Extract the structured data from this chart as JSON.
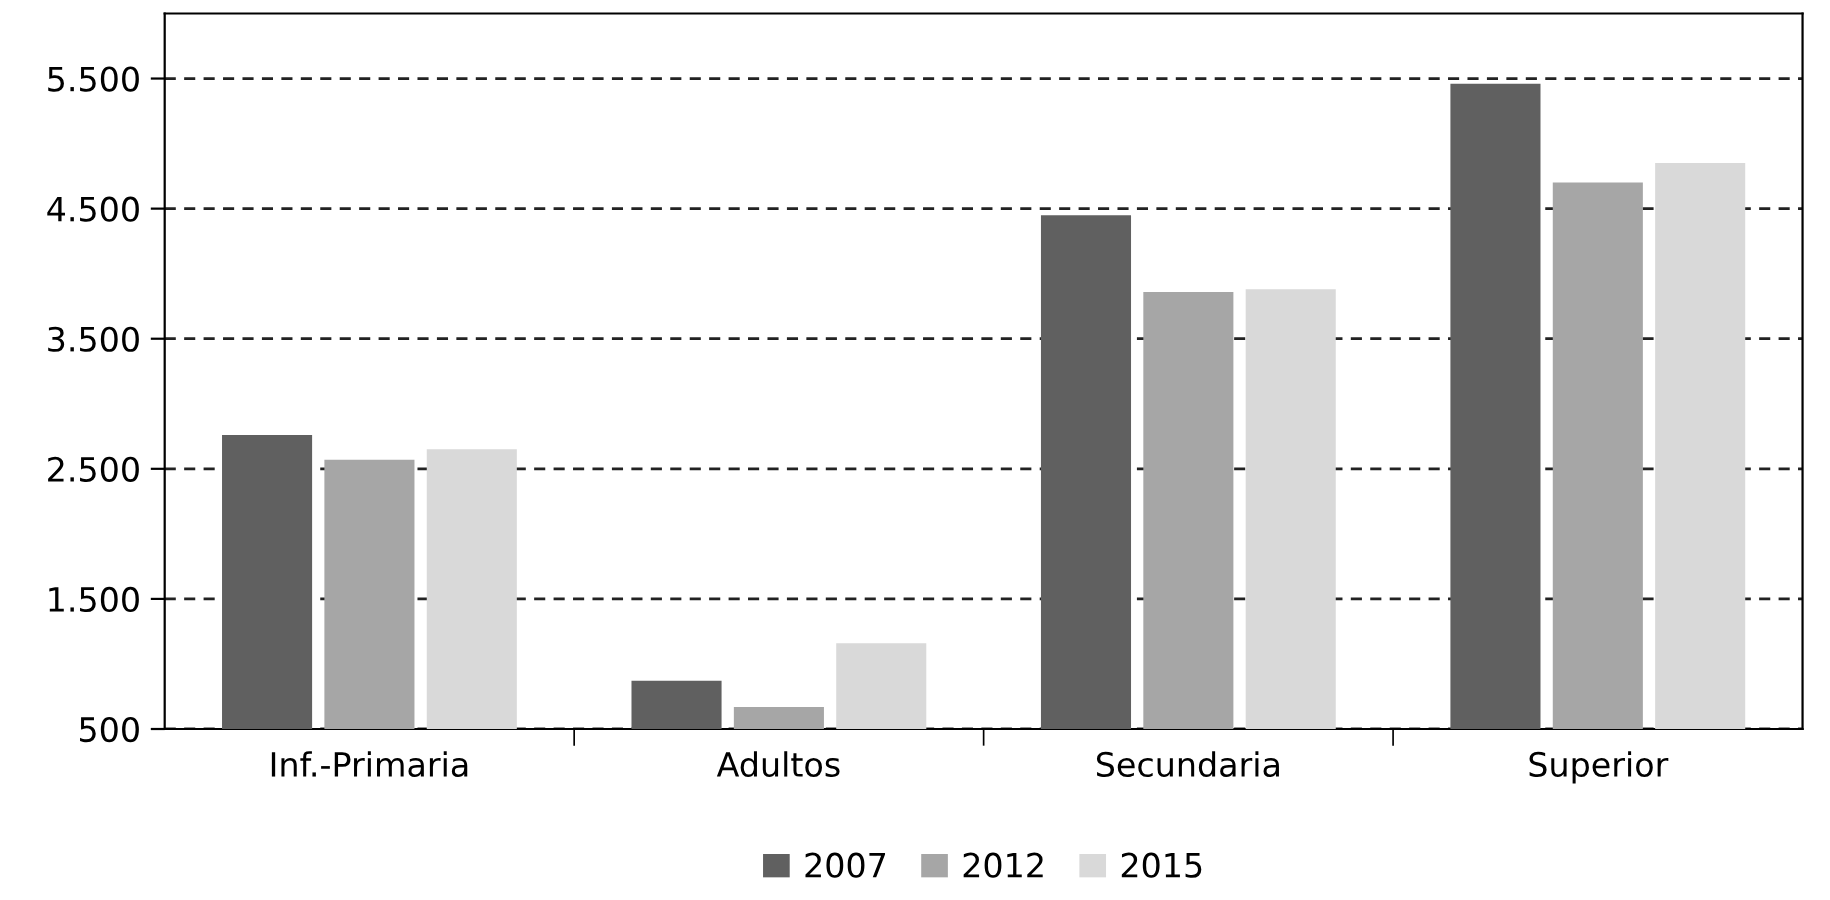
{
  "chart_data": {
    "type": "bar",
    "categories": [
      "Inf.-Primaria",
      "Adultos",
      "Secundaria",
      "Superior"
    ],
    "series": [
      {
        "name": "2007",
        "color": "#606060",
        "values": [
          2760,
          870,
          4450,
          5460
        ]
      },
      {
        "name": "2012",
        "color": "#a6a6a6",
        "values": [
          2570,
          670,
          3860,
          4700
        ]
      },
      {
        "name": "2015",
        "color": "#d9d9d9",
        "values": [
          2650,
          1160,
          3880,
          4850
        ]
      }
    ],
    "ylim": [
      500,
      6000
    ],
    "yticks": [
      {
        "value": 500,
        "label": "500"
      },
      {
        "value": 1500,
        "label": "1.500"
      },
      {
        "value": 2500,
        "label": "2.500"
      },
      {
        "value": 3500,
        "label": "3.500"
      },
      {
        "value": 4500,
        "label": "4.500"
      },
      {
        "value": 5500,
        "label": "5.500"
      }
    ],
    "grid": "y",
    "legend": "bottom"
  }
}
